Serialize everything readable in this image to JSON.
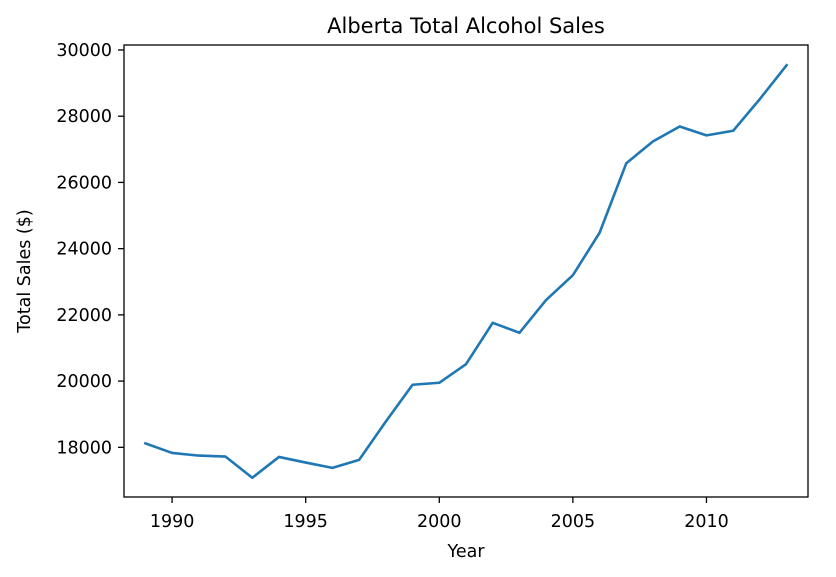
{
  "chart_data": {
    "type": "line",
    "title": "Alberta Total Alcohol Sales",
    "xlabel": "Year",
    "ylabel": "Total Sales ($)",
    "xlim": [
      1988.2,
      2013.8
    ],
    "ylim": [
      16500,
      30150
    ],
    "xticks": [
      1990,
      1995,
      2000,
      2005,
      2010
    ],
    "yticks": [
      18000,
      20000,
      22000,
      24000,
      26000,
      28000,
      30000
    ],
    "grid": false,
    "series": [
      {
        "color": "#1f77b4",
        "x": [
          1989,
          1990,
          1991,
          1992,
          1993,
          1994,
          1995,
          1996,
          1997,
          1998,
          1999,
          2000,
          2001,
          2002,
          2003,
          2004,
          2005,
          2006,
          2007,
          2008,
          2009,
          2010,
          2011,
          2012,
          2013
        ],
        "y": [
          18120,
          17830,
          17750,
          17720,
          17080,
          17710,
          17540,
          17380,
          17620,
          18780,
          19890,
          19950,
          20510,
          21760,
          21460,
          22450,
          23200,
          24480,
          26580,
          27240,
          27690,
          27420,
          27560,
          28520,
          29540
        ]
      }
    ]
  }
}
